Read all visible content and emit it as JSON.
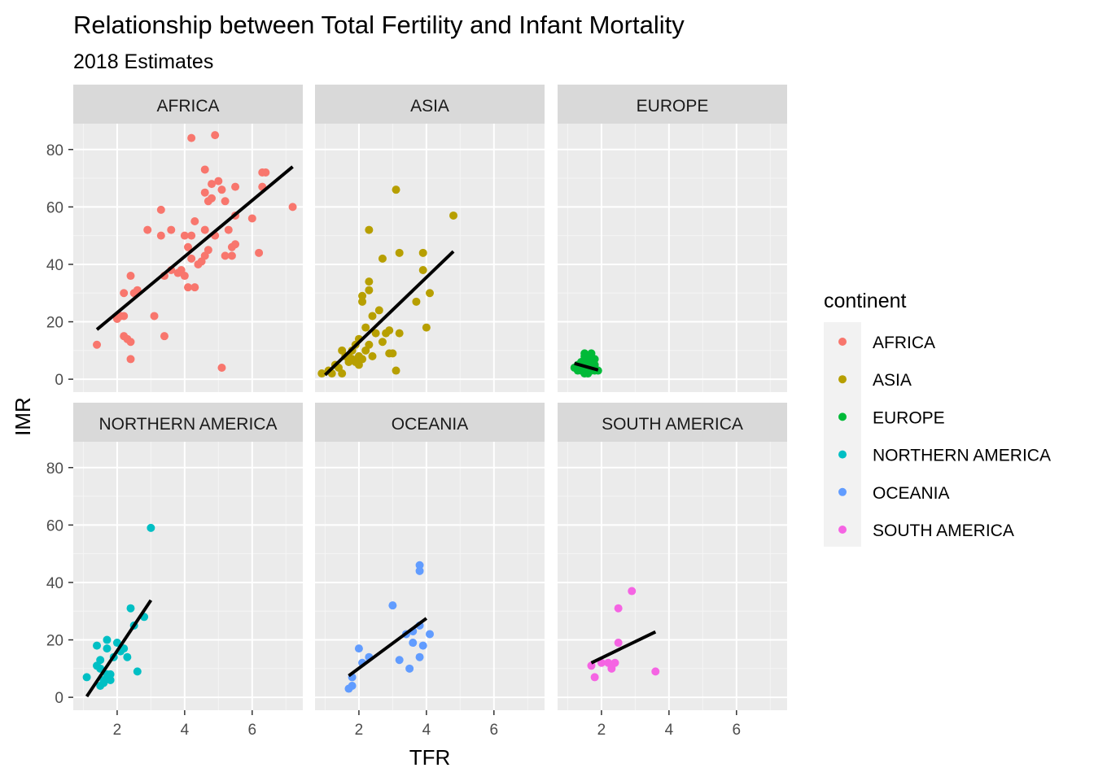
{
  "chart_data": {
    "type": "scatter",
    "title": "Relationship between Total Fertility and Infant Mortality",
    "subtitle": "2018 Estimates",
    "xlabel": "TFR",
    "ylabel": "IMR",
    "xlim": [
      0.7,
      7.5
    ],
    "ylim": [
      -4.5,
      89
    ],
    "x_ticks": [
      2,
      4,
      6
    ],
    "y_ticks": [
      0,
      20,
      40,
      60,
      80
    ],
    "grid": true,
    "facet_by": "continent",
    "legend": {
      "title": "continent",
      "placement": "right",
      "items": [
        {
          "label": "AFRICA",
          "color": "#F8766D"
        },
        {
          "label": "ASIA",
          "color": "#B79F00"
        },
        {
          "label": "EUROPE",
          "color": "#00BA38"
        },
        {
          "label": "NORTHERN AMERICA",
          "color": "#00BFC4"
        },
        {
          "label": "OCEANIA",
          "color": "#619CFF"
        },
        {
          "label": "SOUTH AMERICA",
          "color": "#F564E3"
        }
      ]
    },
    "panels": [
      {
        "name": "AFRICA",
        "color": "#F8766D",
        "trend": [
          [
            1.4,
            17.3
          ],
          [
            7.2,
            74
          ]
        ],
        "points": [
          [
            1.4,
            12
          ],
          [
            2.0,
            21
          ],
          [
            2.1,
            22
          ],
          [
            2.2,
            22
          ],
          [
            2.2,
            30
          ],
          [
            2.2,
            15
          ],
          [
            2.3,
            14
          ],
          [
            2.4,
            13
          ],
          [
            2.4,
            7
          ],
          [
            2.4,
            36
          ],
          [
            2.5,
            30
          ],
          [
            2.6,
            31
          ],
          [
            2.9,
            52
          ],
          [
            3.1,
            22
          ],
          [
            3.3,
            59
          ],
          [
            3.3,
            50
          ],
          [
            3.4,
            15
          ],
          [
            3.4,
            36
          ],
          [
            3.6,
            52
          ],
          [
            3.6,
            38
          ],
          [
            3.8,
            37
          ],
          [
            3.9,
            38
          ],
          [
            4.0,
            36
          ],
          [
            4.0,
            50
          ],
          [
            4.1,
            46
          ],
          [
            4.1,
            32
          ],
          [
            4.2,
            84
          ],
          [
            4.2,
            50
          ],
          [
            4.2,
            42
          ],
          [
            4.3,
            32
          ],
          [
            4.3,
            55
          ],
          [
            4.4,
            40
          ],
          [
            4.5,
            41
          ],
          [
            4.6,
            73
          ],
          [
            4.6,
            65
          ],
          [
            4.6,
            52
          ],
          [
            4.6,
            43
          ],
          [
            4.7,
            45
          ],
          [
            4.7,
            62
          ],
          [
            4.8,
            68
          ],
          [
            4.8,
            63
          ],
          [
            4.9,
            85
          ],
          [
            4.9,
            50
          ],
          [
            5.0,
            69
          ],
          [
            5.1,
            66
          ],
          [
            5.1,
            4
          ],
          [
            5.2,
            62
          ],
          [
            5.2,
            43
          ],
          [
            5.3,
            52
          ],
          [
            5.4,
            46
          ],
          [
            5.4,
            43
          ],
          [
            5.5,
            67
          ],
          [
            5.5,
            57
          ],
          [
            5.5,
            47
          ],
          [
            6.0,
            56
          ],
          [
            6.2,
            44
          ],
          [
            6.3,
            67
          ],
          [
            6.3,
            72
          ],
          [
            6.4,
            72
          ],
          [
            7.2,
            60
          ]
        ]
      },
      {
        "name": "ASIA",
        "color": "#B79F00",
        "trend": [
          [
            1.0,
            1.5
          ],
          [
            4.8,
            44.5
          ]
        ],
        "points": [
          [
            0.9,
            2
          ],
          [
            1.1,
            3
          ],
          [
            1.2,
            2
          ],
          [
            1.3,
            5
          ],
          [
            1.4,
            4
          ],
          [
            1.5,
            2
          ],
          [
            1.5,
            10
          ],
          [
            1.6,
            8
          ],
          [
            1.7,
            6
          ],
          [
            1.7,
            8
          ],
          [
            1.8,
            7
          ],
          [
            1.8,
            10
          ],
          [
            1.9,
            6
          ],
          [
            1.9,
            12
          ],
          [
            2.0,
            5
          ],
          [
            2.0,
            8
          ],
          [
            2.0,
            14
          ],
          [
            2.1,
            7
          ],
          [
            2.1,
            27
          ],
          [
            2.1,
            29
          ],
          [
            2.2,
            10
          ],
          [
            2.2,
            18
          ],
          [
            2.3,
            12
          ],
          [
            2.3,
            31
          ],
          [
            2.3,
            34
          ],
          [
            2.3,
            52
          ],
          [
            2.4,
            8
          ],
          [
            2.4,
            22
          ],
          [
            2.5,
            16
          ],
          [
            2.6,
            24
          ],
          [
            2.7,
            13
          ],
          [
            2.7,
            42
          ],
          [
            2.8,
            16
          ],
          [
            2.9,
            9
          ],
          [
            2.9,
            17
          ],
          [
            3.0,
            9
          ],
          [
            3.1,
            66
          ],
          [
            3.1,
            3
          ],
          [
            3.2,
            16
          ],
          [
            3.2,
            44
          ],
          [
            3.7,
            27
          ],
          [
            3.9,
            44
          ],
          [
            3.9,
            38
          ],
          [
            4.0,
            18
          ],
          [
            4.1,
            30
          ],
          [
            4.8,
            57
          ]
        ]
      },
      {
        "name": "EUROPE",
        "color": "#00BA38",
        "trend": [
          [
            1.2,
            5.5
          ],
          [
            1.9,
            3.2
          ]
        ],
        "points": [
          [
            1.2,
            4
          ],
          [
            1.3,
            3
          ],
          [
            1.3,
            5
          ],
          [
            1.4,
            4
          ],
          [
            1.4,
            3
          ],
          [
            1.4,
            6
          ],
          [
            1.5,
            2
          ],
          [
            1.5,
            3
          ],
          [
            1.5,
            4
          ],
          [
            1.5,
            5
          ],
          [
            1.5,
            7
          ],
          [
            1.5,
            8
          ],
          [
            1.5,
            9
          ],
          [
            1.6,
            2
          ],
          [
            1.6,
            3
          ],
          [
            1.6,
            4
          ],
          [
            1.6,
            5
          ],
          [
            1.6,
            7
          ],
          [
            1.6,
            8
          ],
          [
            1.7,
            3
          ],
          [
            1.7,
            4
          ],
          [
            1.7,
            6
          ],
          [
            1.7,
            9
          ],
          [
            1.8,
            3
          ],
          [
            1.8,
            4
          ],
          [
            1.8,
            5
          ],
          [
            1.8,
            7
          ],
          [
            1.9,
            3
          ]
        ]
      },
      {
        "name": "NORTHERN AMERICA",
        "color": "#00BFC4",
        "trend": [
          [
            1.1,
            0.3
          ],
          [
            3.0,
            33.8
          ]
        ],
        "points": [
          [
            1.1,
            7
          ],
          [
            1.4,
            18
          ],
          [
            1.4,
            11
          ],
          [
            1.5,
            4
          ],
          [
            1.5,
            10
          ],
          [
            1.5,
            13
          ],
          [
            1.6,
            6
          ],
          [
            1.6,
            5
          ],
          [
            1.7,
            8
          ],
          [
            1.7,
            17
          ],
          [
            1.7,
            20
          ],
          [
            1.8,
            6
          ],
          [
            1.8,
            8
          ],
          [
            1.9,
            14
          ],
          [
            2.0,
            19
          ],
          [
            2.1,
            16
          ],
          [
            2.2,
            17
          ],
          [
            2.3,
            14
          ],
          [
            2.4,
            31
          ],
          [
            2.5,
            25
          ],
          [
            2.6,
            9
          ],
          [
            2.8,
            28
          ],
          [
            3.0,
            59
          ]
        ]
      },
      {
        "name": "OCEANIA",
        "color": "#619CFF",
        "trend": [
          [
            1.7,
            7.5
          ],
          [
            4.0,
            27.5
          ]
        ],
        "points": [
          [
            1.7,
            3
          ],
          [
            1.8,
            4
          ],
          [
            1.8,
            7
          ],
          [
            2.0,
            17
          ],
          [
            2.1,
            12
          ],
          [
            2.3,
            14
          ],
          [
            3.0,
            32
          ],
          [
            3.2,
            13
          ],
          [
            3.4,
            22
          ],
          [
            3.5,
            10
          ],
          [
            3.6,
            19
          ],
          [
            3.6,
            23
          ],
          [
            3.8,
            25
          ],
          [
            3.8,
            14
          ],
          [
            3.8,
            46
          ],
          [
            3.8,
            44
          ],
          [
            3.9,
            18
          ],
          [
            4.1,
            22
          ]
        ]
      },
      {
        "name": "SOUTH AMERICA",
        "color": "#F564E3",
        "trend": [
          [
            1.7,
            12
          ],
          [
            3.6,
            22.8
          ]
        ],
        "points": [
          [
            1.7,
            11
          ],
          [
            1.8,
            7
          ],
          [
            2.0,
            12
          ],
          [
            2.2,
            12
          ],
          [
            2.3,
            10
          ],
          [
            2.4,
            12
          ],
          [
            2.5,
            31
          ],
          [
            2.5,
            19
          ],
          [
            2.9,
            37
          ],
          [
            3.6,
            9
          ]
        ]
      }
    ]
  }
}
